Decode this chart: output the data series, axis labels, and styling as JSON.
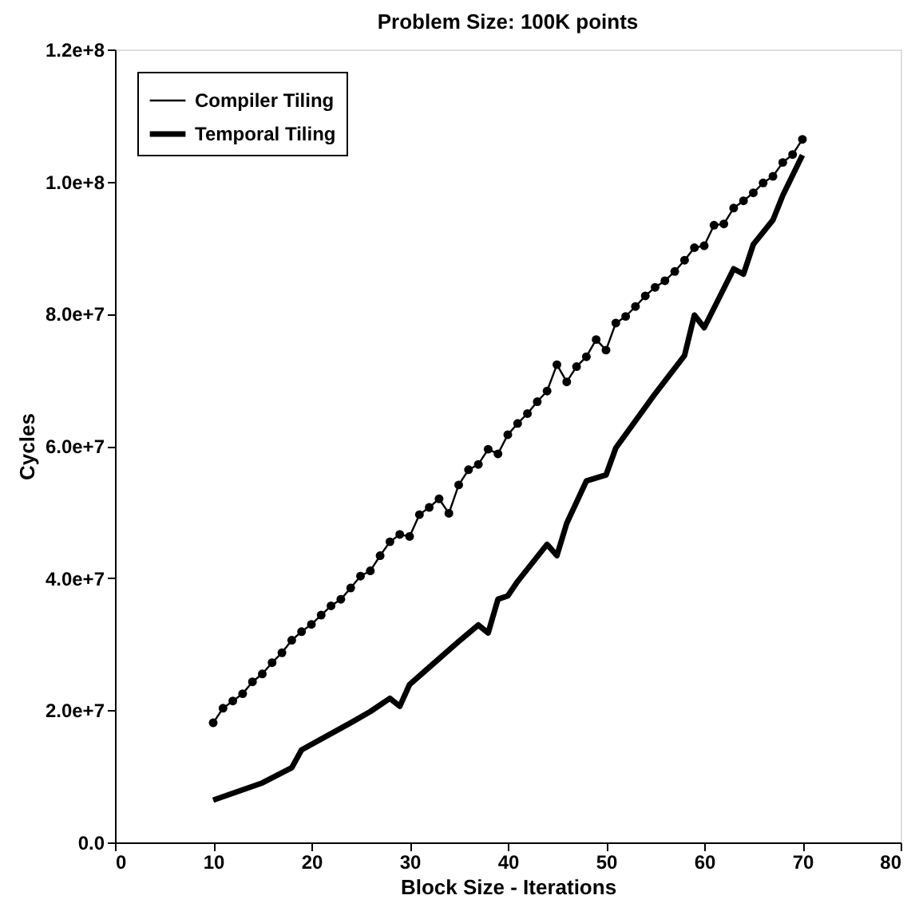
{
  "chart_data": {
    "type": "line",
    "title": "Problem Size: 100K points",
    "xlabel": "Block Size - Iterations",
    "ylabel": "Cycles",
    "xlim": [
      0,
      80
    ],
    "xticks": [
      0,
      10,
      20,
      30,
      40,
      50,
      60,
      70,
      80
    ],
    "ylim": [
      0,
      120000000.0
    ],
    "yticks": [
      {
        "value": 0,
        "label": "0.0"
      },
      {
        "value": 20000000.0,
        "label": "2.0e+7"
      },
      {
        "value": 40000000.0,
        "label": "4.0e+7"
      },
      {
        "value": 60000000.0,
        "label": "6.0e+7"
      },
      {
        "value": 80000000.0,
        "label": "8.0e+7"
      },
      {
        "value": 100000000.0,
        "label": "1.0e+8"
      },
      {
        "value": 120000000.0,
        "label": "1.2e+8"
      }
    ],
    "grid": false,
    "legend": "top left",
    "series": [
      {
        "name": "Compiler Tiling",
        "color": "#000000",
        "marker": "circle",
        "x": [
          10,
          11,
          12,
          13,
          14,
          15,
          16,
          17,
          18,
          19,
          20,
          21,
          22,
          23,
          24,
          25,
          26,
          27,
          28,
          29,
          30,
          31,
          32,
          33,
          34,
          35,
          36,
          37,
          38,
          39,
          40,
          41,
          42,
          43,
          44,
          45,
          46,
          47,
          48,
          49,
          50,
          51,
          52,
          53,
          54,
          55,
          56,
          57,
          58,
          59,
          60,
          61,
          62,
          63,
          64,
          65,
          66,
          67,
          68,
          69,
          70
        ],
        "values": [
          18100000.0,
          20300000.0,
          21400000.0,
          22500000.0,
          24300000.0,
          25500000.0,
          27200000.0,
          28700000.0,
          30600000.0,
          31900000.0,
          33000000.0,
          34400000.0,
          35800000.0,
          36800000.0,
          38500000.0,
          40300000.0,
          41100000.0,
          43400000.0,
          45500000.0,
          46600000.0,
          46300000.0,
          49600000.0,
          50700000.0,
          52000000.0,
          49800000.0,
          54100000.0,
          56400000.0,
          57200000.0,
          59500000.0,
          58800000.0,
          61700000.0,
          63400000.0,
          64900000.0,
          66700000.0,
          68300000.0,
          72300000.0,
          69700000.0,
          72000000.0,
          73500000.0,
          76100000.0,
          74500000.0,
          78600000.0,
          79600000.0,
          81100000.0,
          82700000.0,
          84000000.0,
          85000000.0,
          86400000.0,
          88100000.0,
          90000000.0,
          90300000.0,
          93400000.0,
          93600000.0,
          96000000.0,
          97100000.0,
          98300000.0,
          99800000.0,
          100800000.0,
          102900000.0,
          104100000.0,
          106400000.0
        ]
      },
      {
        "name": "Temporal Tiling",
        "color": "#000000",
        "marker": "none",
        "x": [
          10,
          15,
          18,
          19,
          24,
          26,
          28,
          29,
          30,
          32,
          35,
          37,
          38,
          39,
          40,
          41,
          44,
          45,
          46,
          48,
          50,
          51,
          55,
          58,
          59,
          60,
          63,
          64,
          65,
          67,
          68,
          70
        ],
        "values": [
          6400000.0,
          9000000.0,
          11300000.0,
          14000000.0,
          18100000.0,
          19800000.0,
          21800000.0,
          20600000.0,
          23900000.0,
          26500000.0,
          30400000.0,
          32900000.0,
          31700000.0,
          36800000.0,
          37300000.0,
          39500000.0,
          45100000.0,
          43400000.0,
          48300000.0,
          54700000.0,
          55600000.0,
          59700000.0,
          67900000.0,
          73700000.0,
          79800000.0,
          77900000.0,
          86800000.0,
          86000000.0,
          90500000.0,
          94200000.0,
          97900000.0,
          104000000.0
        ]
      }
    ]
  }
}
